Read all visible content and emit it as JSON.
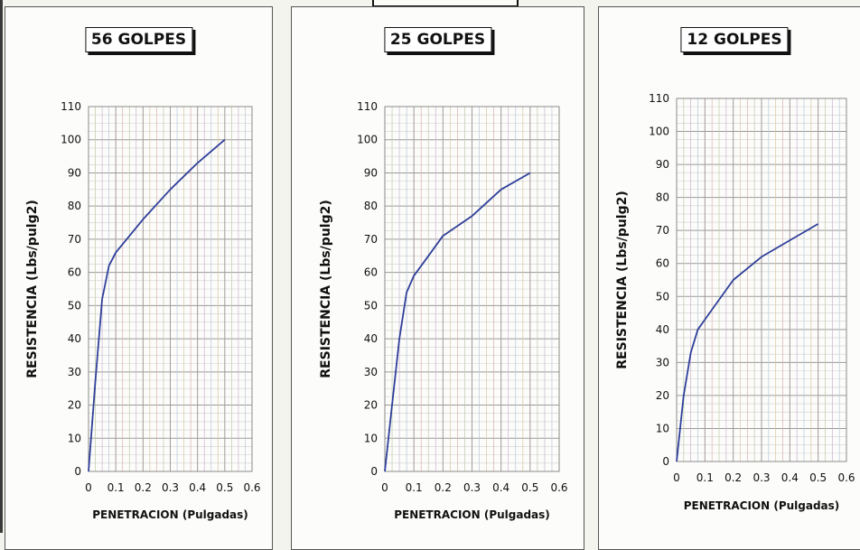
{
  "chart_data": [
    {
      "type": "line",
      "title": "56 GOLPES",
      "xlabel": "PENETRACION (Pulgadas)",
      "ylabel": "RESISTENCIA (Lbs/pulg2)",
      "xlim": [
        0,
        0.6
      ],
      "ylim": [
        0,
        110
      ],
      "xticks": [
        "0",
        "0.1",
        "0.2",
        "0.3",
        "0.4",
        "0.5",
        "0.6"
      ],
      "yticks": [
        "0",
        "10",
        "20",
        "30",
        "40",
        "50",
        "60",
        "70",
        "80",
        "90",
        "100",
        "110"
      ],
      "grid": true,
      "series": [
        {
          "color": "#2f3f9a",
          "points": [
            [
              0,
              0
            ],
            [
              0.025,
              27
            ],
            [
              0.05,
              52
            ],
            [
              0.075,
              62
            ],
            [
              0.1,
              66
            ],
            [
              0.15,
              71
            ],
            [
              0.2,
              76
            ],
            [
              0.3,
              85
            ],
            [
              0.4,
              93
            ],
            [
              0.5,
              100
            ]
          ]
        }
      ]
    },
    {
      "type": "line",
      "title": "25 GOLPES",
      "xlabel": "PENETRACION (Pulgadas)",
      "ylabel": "RESISTENCIA (Lbs/pulg2)",
      "xlim": [
        0,
        0.6
      ],
      "ylim": [
        0,
        110
      ],
      "xticks": [
        "0",
        "0.1",
        "0.2",
        "0.3",
        "0.4",
        "0.5",
        "0.6"
      ],
      "yticks": [
        "0",
        "10",
        "20",
        "30",
        "40",
        "50",
        "60",
        "70",
        "80",
        "90",
        "100",
        "110"
      ],
      "grid": true,
      "series": [
        {
          "color": "#2f3f9a",
          "points": [
            [
              0,
              0
            ],
            [
              0.025,
              20
            ],
            [
              0.05,
              40
            ],
            [
              0.075,
              54
            ],
            [
              0.1,
              59
            ],
            [
              0.15,
              65
            ],
            [
              0.2,
              71
            ],
            [
              0.3,
              77
            ],
            [
              0.4,
              85
            ],
            [
              0.5,
              90
            ]
          ]
        }
      ]
    },
    {
      "type": "line",
      "title": "12 GOLPES",
      "xlabel": "PENETRACION (Pulgadas)",
      "ylabel": "RESISTENCIA (Lbs/pulg2)",
      "xlim": [
        0,
        0.6
      ],
      "ylim": [
        0,
        110
      ],
      "xticks": [
        "0",
        "0.1",
        "0.2",
        "0.3",
        "0.4",
        "0.5",
        "0.6"
      ],
      "yticks": [
        "0",
        "10",
        "20",
        "30",
        "40",
        "50",
        "60",
        "70",
        "80",
        "90",
        "100",
        "110"
      ],
      "grid": true,
      "series": [
        {
          "color": "#2f3f9a",
          "points": [
            [
              0,
              0
            ],
            [
              0.025,
              20
            ],
            [
              0.05,
              33
            ],
            [
              0.075,
              40
            ],
            [
              0.1,
              43
            ],
            [
              0.15,
              49
            ],
            [
              0.2,
              55
            ],
            [
              0.3,
              62
            ],
            [
              0.4,
              67
            ],
            [
              0.5,
              72
            ]
          ]
        }
      ]
    }
  ]
}
